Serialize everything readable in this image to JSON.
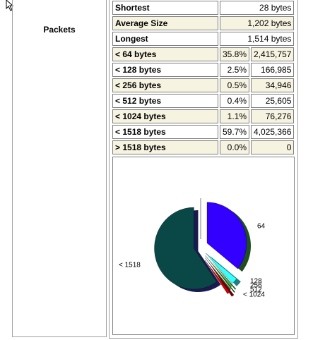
{
  "section_label": "Packets",
  "size_stats": [
    {
      "label": "Shortest",
      "value": "28 bytes"
    },
    {
      "label": "Average Size",
      "value": "1,202 bytes"
    },
    {
      "label": "Longest",
      "value": "1,514 bytes"
    }
  ],
  "distribution": [
    {
      "label": "< 64 bytes",
      "percent": 35.8,
      "percent_label": "35.8%",
      "count": "2,415,757",
      "pie_label": "64",
      "color": "#3300ff",
      "side": "#1f4f1f"
    },
    {
      "label": "< 128 bytes",
      "percent": 2.5,
      "percent_label": "2.5%",
      "count": "166,985",
      "pie_label": "128",
      "color": "#33ffff",
      "side": "#208080"
    },
    {
      "label": "< 256 bytes",
      "percent": 0.5,
      "percent_label": "0.5%",
      "count": "34,946",
      "pie_label": "256",
      "color": "#33cc33",
      "side": "#1a661a"
    },
    {
      "label": "< 512 bytes",
      "percent": 0.4,
      "percent_label": "0.4%",
      "count": "25,605",
      "pie_label": "512",
      "color": "#226622",
      "side": "#113311"
    },
    {
      "label": "< 1024 bytes",
      "percent": 1.1,
      "percent_label": "1.1%",
      "count": "76,276",
      "pie_label": "< 1024",
      "color": "#cc0000",
      "side": "#660000"
    },
    {
      "label": "< 1518 bytes",
      "percent": 59.7,
      "percent_label": "59.7%",
      "count": "4,025,366",
      "pie_label": "< 1518",
      "color": "#0a4848",
      "side": "#1a1a50"
    },
    {
      "label": "> 1518 bytes",
      "percent": 0.0,
      "percent_label": "0.0%",
      "count": "0",
      "pie_label": null,
      "color": "#888888",
      "side": "#444444"
    }
  ]
}
